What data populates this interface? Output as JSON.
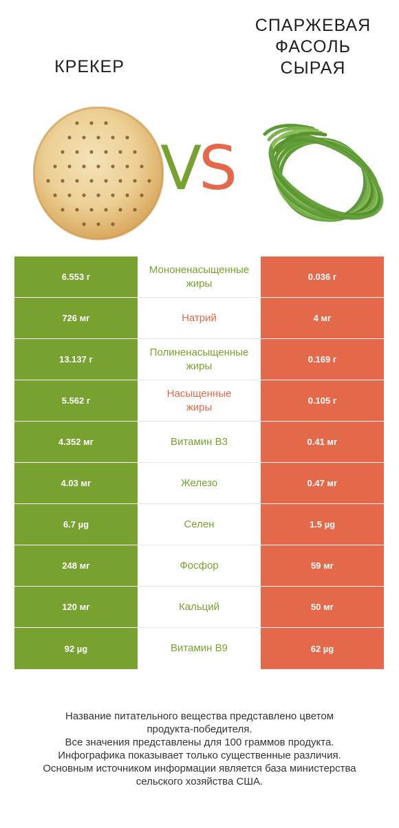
{
  "header": {
    "left_title": "КРЕКЕР",
    "right_title_lines": [
      "СПАРЖЕВАЯ",
      "ФАСОЛЬ",
      "СЫРАЯ"
    ],
    "vs_v": "V",
    "vs_s": "S"
  },
  "colors": {
    "winner_left": "#78a22f",
    "winner_right": "#e4694a"
  },
  "rows": [
    {
      "left": "6.553 г",
      "nutrient": [
        "Мононенасыщенные",
        "жиры"
      ],
      "right": "0.036 г",
      "winner": "left"
    },
    {
      "left": "726 мг",
      "nutrient": [
        "Натрий"
      ],
      "right": "4 мг",
      "winner": "right"
    },
    {
      "left": "13.137 г",
      "nutrient": [
        "Полиненасыщенные",
        "жиры"
      ],
      "right": "0.169 г",
      "winner": "left"
    },
    {
      "left": "5.562 г",
      "nutrient": [
        "Насыщенные",
        "жиры"
      ],
      "right": "0.105 г",
      "winner": "right"
    },
    {
      "left": "4.352 мг",
      "nutrient": [
        "Витамин B3"
      ],
      "right": "0.41 мг",
      "winner": "left"
    },
    {
      "left": "4.03 мг",
      "nutrient": [
        "Железо"
      ],
      "right": "0.47 мг",
      "winner": "left"
    },
    {
      "left": "6.7 µg",
      "nutrient": [
        "Селен"
      ],
      "right": "1.5 µg",
      "winner": "left"
    },
    {
      "left": "248 мг",
      "nutrient": [
        "Фосфор"
      ],
      "right": "59 мг",
      "winner": "left"
    },
    {
      "left": "120 мг",
      "nutrient": [
        "Кальций"
      ],
      "right": "50 мг",
      "winner": "left"
    },
    {
      "left": "92 µg",
      "nutrient": [
        "Витамин B9"
      ],
      "right": "62 µg",
      "winner": "left"
    }
  ],
  "footer": [
    "Название питательного вещества представлено цветом",
    "продукта-победителя.",
    "Все значения представлены для 100 граммов продукта.",
    "Инфографика показывает только существенные различия.",
    "Основным источником информации является база министерства",
    "сельского хозяйства США."
  ]
}
